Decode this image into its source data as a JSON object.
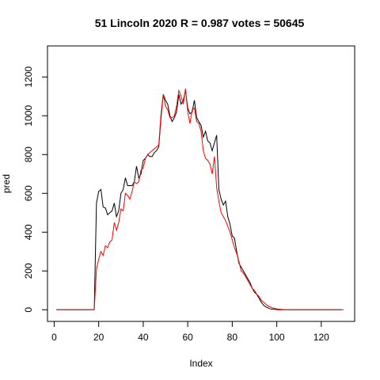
{
  "chart_data": {
    "type": "line",
    "title": "51 Lincoln 2020 R = 0.987 votes = 50645",
    "xlabel": "Index",
    "ylabel": "pred",
    "xlim": [
      -3,
      135
    ],
    "ylim": [
      -60,
      1360
    ],
    "x_ticks": [
      0,
      20,
      40,
      60,
      80,
      100,
      120
    ],
    "y_ticks": [
      0,
      200,
      400,
      600,
      800,
      1000,
      1200
    ],
    "grid": false,
    "series": [
      {
        "color": "#000000",
        "values": [
          0,
          0,
          0,
          0,
          0,
          0,
          0,
          0,
          0,
          0,
          0,
          0,
          0,
          0,
          0,
          0,
          0,
          0,
          550,
          610,
          620,
          530,
          525,
          490,
          500,
          510,
          550,
          480,
          510,
          600,
          620,
          680,
          640,
          640,
          640,
          660,
          740,
          680,
          700,
          770,
          780,
          800,
          790,
          790,
          810,
          820,
          840,
          990,
          1110,
          1080,
          1060,
          1000,
          970,
          990,
          1020,
          1110,
          1060,
          1080,
          1130,
          1040,
          1010,
          1020,
          1080,
          990,
          970,
          950,
          890,
          920,
          870,
          860,
          820,
          860,
          900,
          620,
          570,
          540,
          560,
          480,
          440,
          380,
          370,
          300,
          240,
          220,
          200,
          180,
          160,
          140,
          110,
          90,
          80,
          60,
          40,
          25,
          15,
          10,
          5,
          3,
          2,
          1,
          0,
          0,
          0,
          0,
          0,
          0,
          0,
          0,
          0,
          0,
          0,
          0,
          0,
          0,
          0,
          0,
          0,
          0,
          0,
          0,
          0,
          0,
          0,
          0,
          0,
          0,
          0,
          0,
          0
        ]
      },
      {
        "color": "#ff0000",
        "values": [
          0,
          0,
          0,
          0,
          0,
          0,
          0,
          0,
          0,
          0,
          0,
          0,
          0,
          0,
          0,
          0,
          0,
          0,
          210,
          260,
          300,
          280,
          330,
          320,
          350,
          360,
          450,
          410,
          450,
          520,
          510,
          600,
          590,
          570,
          610,
          660,
          650,
          660,
          720,
          730,
          780,
          800,
          810,
          820,
          830,
          840,
          850,
          1010,
          1110,
          1050,
          1030,
          990,
          990,
          1000,
          1050,
          1130,
          1100,
          1060,
          1140,
          1020,
          960,
          1030,
          1040,
          970,
          960,
          920,
          820,
          780,
          770,
          750,
          700,
          790,
          630,
          560,
          500,
          480,
          460,
          430,
          400,
          360,
          320,
          290,
          250,
          200,
          190,
          170,
          150,
          130,
          110,
          100,
          80,
          70,
          50,
          40,
          30,
          20,
          15,
          10,
          8,
          5,
          3,
          2,
          1,
          0,
          0,
          0,
          0,
          0,
          0,
          0,
          0,
          0,
          0,
          0,
          0,
          0,
          0,
          0,
          0,
          0,
          0,
          0,
          0,
          0,
          0,
          0,
          0,
          0,
          0,
          0
        ]
      }
    ]
  }
}
